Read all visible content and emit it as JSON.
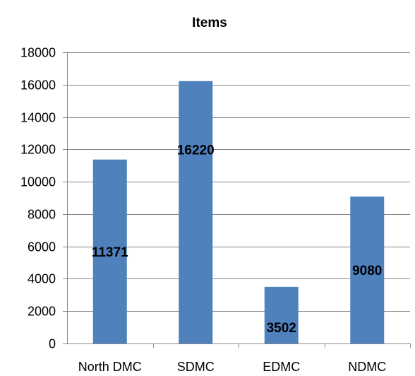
{
  "chart_data": {
    "type": "bar",
    "title": "Items",
    "xlabel": "",
    "ylabel": "",
    "categories": [
      "North DMC",
      "SDMC",
      "EDMC",
      "NDMC"
    ],
    "values": [
      11371,
      16220,
      3502,
      9080
    ],
    "data_labels": [
      "11371",
      "16220",
      "3502",
      "9080"
    ],
    "ylim": [
      0,
      18000
    ],
    "yticks": [
      0,
      2000,
      4000,
      6000,
      8000,
      10000,
      12000,
      14000,
      16000,
      18000
    ],
    "ytick_labels": [
      "0",
      "2000",
      "4000",
      "6000",
      "8000",
      "10000",
      "12000",
      "14000",
      "16000",
      "18000"
    ],
    "grid": "horizontal",
    "legend": "none",
    "bar_color": "#4f81bd",
    "gridline_color": "#878787"
  }
}
